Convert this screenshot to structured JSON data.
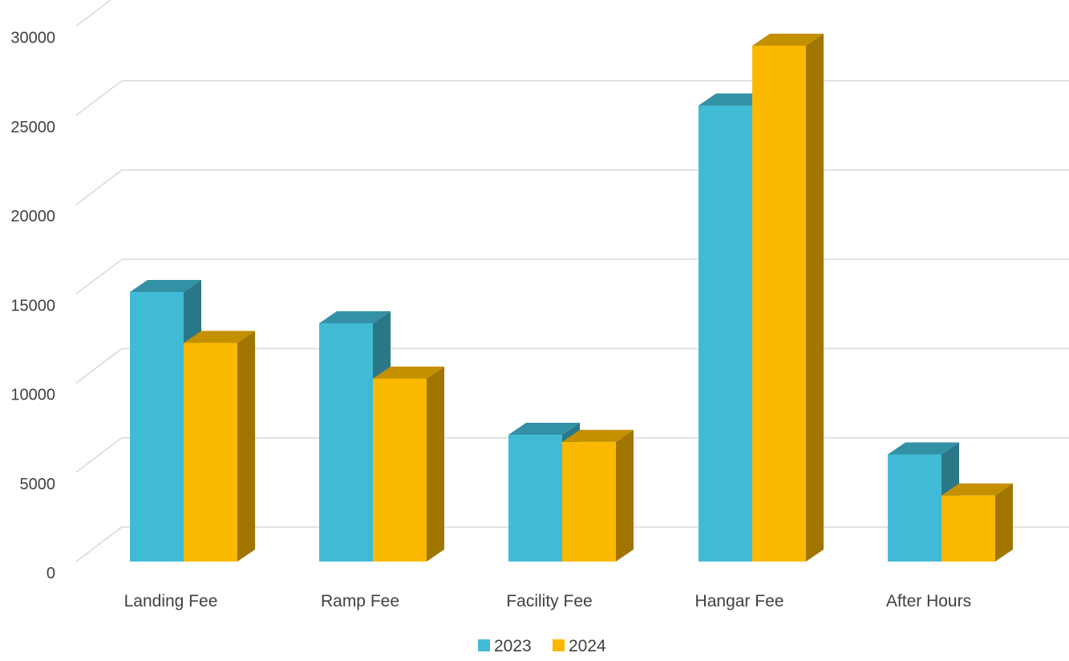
{
  "chart_data": {
    "type": "bar",
    "title": "",
    "xlabel": "",
    "ylabel": "",
    "categories": [
      "Landing Fee",
      "Ramp Fee",
      "Facility Fee",
      "Hangar Fee",
      "After Hours"
    ],
    "series": [
      {
        "name": "2023",
        "values": [
          15100,
          13350,
          7100,
          25550,
          6000
        ],
        "color": "#41BAD5"
      },
      {
        "name": "2024",
        "values": [
          12250,
          10250,
          6700,
          28900,
          3700
        ],
        "color": "#FBB800"
      }
    ],
    "ylim": [
      0,
      30000
    ],
    "yticks": [
      "0",
      "5000",
      "10000",
      "15000",
      "20000",
      "25000",
      "30000"
    ],
    "grid": true,
    "legend_position": "bottom",
    "style": "3d-clustered-column"
  }
}
